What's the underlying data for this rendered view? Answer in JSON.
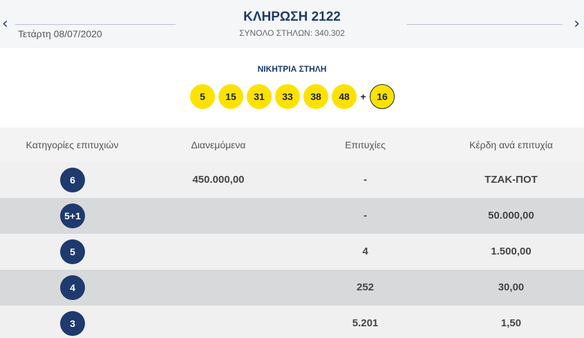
{
  "header": {
    "prev_arrow": "‹",
    "next_arrow": "›",
    "date": "Τετάρτη 08/07/2020",
    "title": "ΚΛΗΡΩΣΗ 2122",
    "subtitle": "ΣΥΝΟΛΟ ΣΤΗΛΩΝ: 340.302"
  },
  "winning": {
    "title": "ΝΙΚΗΤΡΙΑ ΣΤΗΛΗ",
    "numbers": [
      "5",
      "15",
      "31",
      "33",
      "38",
      "48"
    ],
    "plus": "+",
    "bonus": "16",
    "ball_color": "#fde200"
  },
  "table": {
    "headers": [
      "Κατηγορίες επιτυχιών",
      "Διανεμόμενα",
      "Επιτυχίες",
      "Κέρδη ανά επιτυχία"
    ],
    "rows": [
      {
        "category": "6",
        "distributed": "450.000,00",
        "winners": "-",
        "prize": "ΤΖΑΚ-ΠΟΤ"
      },
      {
        "category": "5+1",
        "distributed": "",
        "winners": "-",
        "prize": "50.000,00"
      },
      {
        "category": "5",
        "distributed": "",
        "winners": "4",
        "prize": "1.500,00"
      },
      {
        "category": "4",
        "distributed": "",
        "winners": "252",
        "prize": "30,00"
      },
      {
        "category": "3",
        "distributed": "",
        "winners": "5.201",
        "prize": "1,50"
      }
    ],
    "badge_color": "#1e3a6e"
  }
}
